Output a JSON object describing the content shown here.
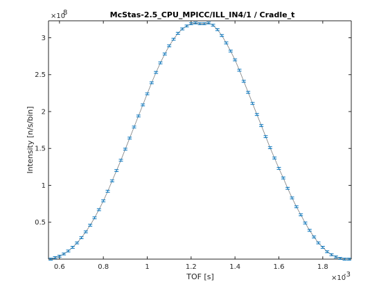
{
  "chart_data": {
    "type": "line",
    "title": "McStas-2.5_CPU_MPICC/ILL_IN4/1 / Cradle_t",
    "xlabel": "TOF [s]",
    "ylabel": "Intensity [n/s/bin]",
    "x_exponent_label": "×10",
    "x_exponent": "-3",
    "y_exponent_label": "×10",
    "y_exponent": "8",
    "xlim": [
      0.55,
      1.93
    ],
    "ylim": [
      0,
      3.23
    ],
    "x_ticks": [
      0.6,
      0.8,
      1.0,
      1.2,
      1.4,
      1.6,
      1.8
    ],
    "x_tick_labels": [
      "0.6",
      "0.8",
      "1",
      "1.2",
      "1.4",
      "1.6",
      "1.8"
    ],
    "y_ticks": [
      0.5,
      1.0,
      1.5,
      2.0,
      2.5,
      3.0
    ],
    "y_tick_labels": [
      "0.5",
      "1",
      "1.5",
      "2",
      "2.5",
      "3"
    ],
    "grid": false,
    "series": [
      {
        "x": [
          0.56,
          0.58,
          0.6,
          0.62,
          0.64,
          0.66,
          0.68,
          0.7,
          0.72,
          0.74,
          0.76,
          0.78,
          0.8,
          0.82,
          0.84,
          0.86,
          0.88,
          0.9,
          0.92,
          0.94,
          0.96,
          0.98,
          1.0,
          1.02,
          1.04,
          1.06,
          1.08,
          1.1,
          1.12,
          1.14,
          1.16,
          1.18,
          1.2,
          1.22,
          1.24,
          1.26,
          1.28,
          1.3,
          1.32,
          1.34,
          1.36,
          1.38,
          1.4,
          1.42,
          1.44,
          1.46,
          1.48,
          1.5,
          1.52,
          1.54,
          1.56,
          1.58,
          1.6,
          1.62,
          1.64,
          1.66,
          1.68,
          1.7,
          1.72,
          1.74,
          1.76,
          1.78,
          1.8,
          1.82,
          1.84,
          1.86,
          1.88,
          1.9,
          1.92
        ],
        "y": [
          0.0,
          0.02,
          0.04,
          0.07,
          0.11,
          0.16,
          0.22,
          0.29,
          0.37,
          0.46,
          0.56,
          0.67,
          0.79,
          0.92,
          1.06,
          1.2,
          1.34,
          1.49,
          1.64,
          1.79,
          1.94,
          2.09,
          2.24,
          2.39,
          2.53,
          2.66,
          2.78,
          2.89,
          2.98,
          3.06,
          3.12,
          3.16,
          3.19,
          3.2,
          3.19,
          3.19,
          3.2,
          3.17,
          3.11,
          3.03,
          2.93,
          2.82,
          2.7,
          2.56,
          2.41,
          2.26,
          2.11,
          1.96,
          1.81,
          1.66,
          1.51,
          1.37,
          1.23,
          1.1,
          0.96,
          0.83,
          0.71,
          0.6,
          0.49,
          0.39,
          0.3,
          0.22,
          0.16,
          0.1,
          0.06,
          0.03,
          0.01,
          0.0,
          0.0
        ]
      }
    ]
  }
}
